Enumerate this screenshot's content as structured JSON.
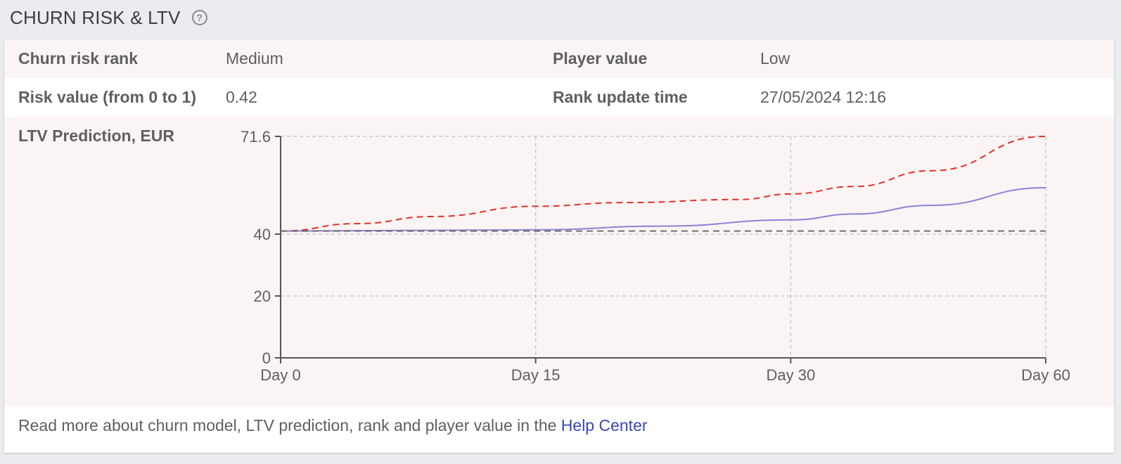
{
  "header": {
    "title": "CHURN RISK & LTV",
    "help_icon": "question-circle-icon"
  },
  "info": {
    "churn_risk_rank_label": "Churn risk rank",
    "churn_risk_rank_value": "Medium",
    "player_value_label": "Player value",
    "player_value_value": "Low",
    "risk_value_label": "Risk value (from 0 to 1)",
    "risk_value_value": "0.42",
    "rank_update_label": "Rank update time",
    "rank_update_value": "27/05/2024 12:16",
    "ltv_label": "LTV Prediction, EUR"
  },
  "chart_data": {
    "type": "line",
    "x": [
      "Day 0",
      "Day 15",
      "Day 30",
      "Day 60"
    ],
    "y_ticks": [
      0,
      20,
      40,
      71.6
    ],
    "ylim": [
      0,
      71.6
    ],
    "series": [
      {
        "style": "dashed",
        "color": "#e0302a",
        "points": [
          [
            0,
            41
          ],
          [
            0.1,
            43.4
          ],
          [
            0.2,
            45.7
          ],
          [
            0.333,
            49
          ],
          [
            0.45,
            50.2
          ],
          [
            0.6,
            51.2
          ],
          [
            0.667,
            53
          ],
          [
            0.75,
            55.4
          ],
          [
            0.85,
            60.5
          ],
          [
            1,
            71.6
          ]
        ]
      },
      {
        "style": "solid",
        "color": "#8a82d6",
        "points": [
          [
            0,
            41
          ],
          [
            0.333,
            41.4
          ],
          [
            0.5,
            42.6
          ],
          [
            0.667,
            44.6
          ],
          [
            0.75,
            46.5
          ],
          [
            0.85,
            49.3
          ],
          [
            1,
            55
          ]
        ]
      },
      {
        "style": "dashed",
        "color": "#6f6f6f",
        "points": [
          [
            0,
            41
          ],
          [
            1,
            41
          ]
        ]
      }
    ]
  },
  "footer": {
    "text": "Read more about churn model, LTV prediction, rank and player value in the ",
    "link": "Help Center"
  }
}
